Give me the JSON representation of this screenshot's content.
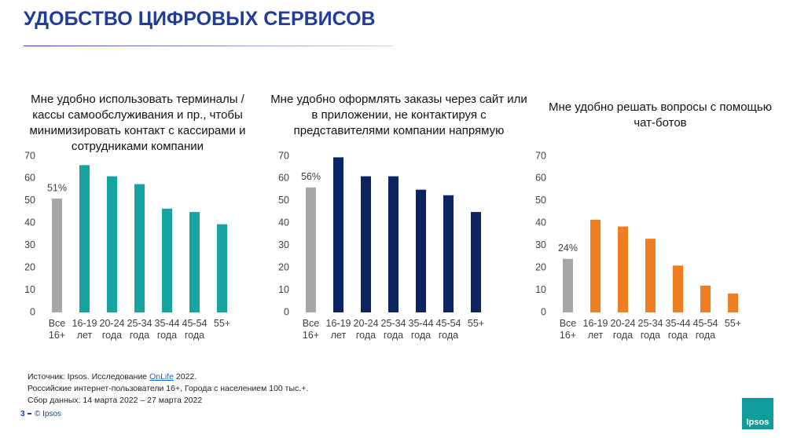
{
  "header": {
    "title": "УДОБСТВО ЦИФРОВЫХ СЕРВИСОВ"
  },
  "chart_data": [
    {
      "type": "bar",
      "title": "Мне удобно использовать терминалы / кассы самообслуживания и пр., чтобы минимизировать контакт с кассирами и сотрудниками компании",
      "categories": [
        "Все 16+",
        "16-19 лет",
        "20-24 года",
        "25-34 года",
        "35-44 года",
        "45-54 года",
        "55+"
      ],
      "values": [
        51,
        66,
        61,
        57.5,
        46.5,
        45,
        39.5
      ],
      "value_labels": [
        "51%",
        null,
        null,
        null,
        null,
        null,
        null
      ],
      "colors": [
        "#a6a6a6",
        "#17a3a0",
        "#17a3a0",
        "#17a3a0",
        "#17a3a0",
        "#17a3a0",
        "#17a3a0"
      ],
      "ylim": [
        0,
        70
      ],
      "yticks": [
        0,
        10,
        20,
        30,
        40,
        50,
        60,
        70
      ]
    },
    {
      "type": "bar",
      "title": "Мне удобно оформлять заказы через сайт или в приложении, не контактируя с представителями компании напрямую",
      "categories": [
        "Все 16+",
        "16-19 лет",
        "20-24 года",
        "25-34 года",
        "35-44 года",
        "45-54 года",
        "55+"
      ],
      "values": [
        56,
        69.5,
        61,
        61,
        55,
        52.5,
        45
      ],
      "value_labels": [
        "56%",
        null,
        null,
        null,
        null,
        null,
        null
      ],
      "colors": [
        "#a6a6a6",
        "#0c2461",
        "#0c2461",
        "#0c2461",
        "#0c2461",
        "#0c2461",
        "#0c2461"
      ],
      "ylim": [
        0,
        70
      ],
      "yticks": [
        0,
        10,
        20,
        30,
        40,
        50,
        60,
        70
      ]
    },
    {
      "type": "bar",
      "title": "Мне удобно решать вопросы с помощью чат-ботов",
      "categories": [
        "Все 16+",
        "16-19 лет",
        "20-24 года",
        "25-34 года",
        "35-44 года",
        "45-54 года",
        "55+"
      ],
      "values": [
        24,
        41.5,
        38.5,
        33,
        21,
        12,
        8.5
      ],
      "value_labels": [
        "24%",
        null,
        null,
        null,
        null,
        null,
        null
      ],
      "colors": [
        "#a6a6a6",
        "#ef7d22",
        "#ef7d22",
        "#ef7d22",
        "#ef7d22",
        "#ef7d22",
        "#ef7d22"
      ],
      "ylim": [
        0,
        70
      ],
      "yticks": [
        0,
        10,
        20,
        30,
        40,
        50,
        60,
        70
      ]
    }
  ],
  "footer": {
    "source_prefix": "Источник: Ipsos. Исследование ",
    "source_link": "OnLife",
    "source_suffix": " 2022.",
    "line2": "Российские интернет-пользователи 16+, Города с населением 100 тыс.+.",
    "line3": "Сбор данных: 14 марта 2022 – 27 марта 2022",
    "page": "3",
    "copyright": "© Ipsos",
    "logo": "Ipsos"
  }
}
